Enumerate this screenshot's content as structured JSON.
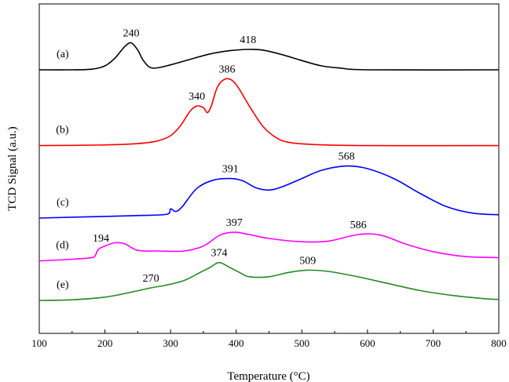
{
  "chart_data": {
    "type": "line",
    "title": "",
    "xlabel": "Temperature (°C)",
    "ylabel": "TCD Signal (a.u.)",
    "xlim": [
      100,
      800
    ],
    "xticks": [
      100,
      200,
      300,
      400,
      500,
      600,
      700,
      800
    ],
    "ylim": [
      0,
      10
    ],
    "grid": false,
    "series": [
      {
        "name": "(a)",
        "color": "#000000",
        "offset": 8.0,
        "points": [
          [
            100,
            0.0
          ],
          [
            150,
            0.0
          ],
          [
            180,
            0.02
          ],
          [
            200,
            0.12
          ],
          [
            215,
            0.35
          ],
          [
            230,
            0.7
          ],
          [
            240,
            0.82
          ],
          [
            250,
            0.6
          ],
          [
            258,
            0.3
          ],
          [
            268,
            0.08
          ],
          [
            280,
            0.06
          ],
          [
            300,
            0.15
          ],
          [
            330,
            0.32
          ],
          [
            360,
            0.48
          ],
          [
            390,
            0.58
          ],
          [
            418,
            0.62
          ],
          [
            440,
            0.6
          ],
          [
            470,
            0.46
          ],
          [
            500,
            0.28
          ],
          [
            530,
            0.12
          ],
          [
            560,
            0.05
          ],
          [
            600,
            0.0
          ],
          [
            800,
            0.0
          ]
        ],
        "peaks": [
          {
            "x": 240,
            "label": "240"
          },
          {
            "x": 418,
            "label": "418"
          }
        ]
      },
      {
        "name": "(b)",
        "color": "#ff0000",
        "offset": 5.7,
        "points": [
          [
            100,
            0.0
          ],
          [
            200,
            0.02
          ],
          [
            250,
            0.06
          ],
          [
            280,
            0.14
          ],
          [
            300,
            0.3
          ],
          [
            315,
            0.6
          ],
          [
            330,
            1.05
          ],
          [
            340,
            1.2
          ],
          [
            350,
            1.15
          ],
          [
            356,
            1.0
          ],
          [
            362,
            1.2
          ],
          [
            372,
            1.8
          ],
          [
            386,
            2.03
          ],
          [
            400,
            1.85
          ],
          [
            420,
            1.2
          ],
          [
            440,
            0.6
          ],
          [
            460,
            0.25
          ],
          [
            480,
            0.1
          ],
          [
            520,
            0.03
          ],
          [
            600,
            0.0
          ],
          [
            800,
            0.0
          ]
        ],
        "peaks": [
          {
            "x": 340,
            "label": "340"
          },
          {
            "x": 386,
            "label": "386"
          }
        ]
      },
      {
        "name": "(c)",
        "color": "#0000ff",
        "offset": 3.5,
        "points": [
          [
            100,
            0.0
          ],
          [
            200,
            0.05
          ],
          [
            260,
            0.08
          ],
          [
            295,
            0.12
          ],
          [
            300,
            0.28
          ],
          [
            308,
            0.2
          ],
          [
            318,
            0.35
          ],
          [
            340,
            0.9
          ],
          [
            365,
            1.15
          ],
          [
            391,
            1.2
          ],
          [
            410,
            1.13
          ],
          [
            430,
            0.92
          ],
          [
            450,
            0.85
          ],
          [
            470,
            0.95
          ],
          [
            500,
            1.2
          ],
          [
            530,
            1.45
          ],
          [
            568,
            1.58
          ],
          [
            600,
            1.5
          ],
          [
            640,
            1.2
          ],
          [
            680,
            0.75
          ],
          [
            720,
            0.35
          ],
          [
            760,
            0.15
          ],
          [
            800,
            0.1
          ]
        ],
        "peaks": [
          {
            "x": 391,
            "label": "391"
          },
          {
            "x": 568,
            "label": "568"
          }
        ]
      },
      {
        "name": "(d)",
        "color": "#ff00ff",
        "offset": 2.2,
        "points": [
          [
            100,
            0.0
          ],
          [
            150,
            0.05
          ],
          [
            180,
            0.1
          ],
          [
            185,
            0.15
          ],
          [
            190,
            0.35
          ],
          [
            200,
            0.45
          ],
          [
            215,
            0.55
          ],
          [
            230,
            0.52
          ],
          [
            250,
            0.32
          ],
          [
            280,
            0.3
          ],
          [
            320,
            0.3
          ],
          [
            350,
            0.45
          ],
          [
            375,
            0.78
          ],
          [
            397,
            0.87
          ],
          [
            420,
            0.8
          ],
          [
            450,
            0.68
          ],
          [
            500,
            0.58
          ],
          [
            540,
            0.6
          ],
          [
            586,
            0.8
          ],
          [
            620,
            0.78
          ],
          [
            660,
            0.5
          ],
          [
            700,
            0.28
          ],
          [
            750,
            0.13
          ],
          [
            800,
            0.1
          ]
        ],
        "peaks": [
          {
            "x": 194,
            "label": "194"
          },
          {
            "x": 397,
            "label": "397"
          },
          {
            "x": 586,
            "label": "586"
          }
        ]
      },
      {
        "name": "(e)",
        "color": "#228b22",
        "offset": 1.0,
        "points": [
          [
            100,
            0.0
          ],
          [
            150,
            0.02
          ],
          [
            200,
            0.1
          ],
          [
            240,
            0.25
          ],
          [
            270,
            0.38
          ],
          [
            290,
            0.45
          ],
          [
            320,
            0.6
          ],
          [
            345,
            0.85
          ],
          [
            360,
            1.0
          ],
          [
            374,
            1.15
          ],
          [
            390,
            1.0
          ],
          [
            405,
            0.85
          ],
          [
            420,
            0.72
          ],
          [
            450,
            0.72
          ],
          [
            480,
            0.85
          ],
          [
            509,
            0.92
          ],
          [
            540,
            0.88
          ],
          [
            580,
            0.74
          ],
          [
            630,
            0.52
          ],
          [
            680,
            0.3
          ],
          [
            730,
            0.15
          ],
          [
            780,
            0.05
          ],
          [
            800,
            0.03
          ]
        ],
        "peaks": [
          {
            "x": 270,
            "label": "270"
          },
          {
            "x": 374,
            "label": "374"
          },
          {
            "x": 509,
            "label": "509"
          }
        ]
      }
    ]
  }
}
